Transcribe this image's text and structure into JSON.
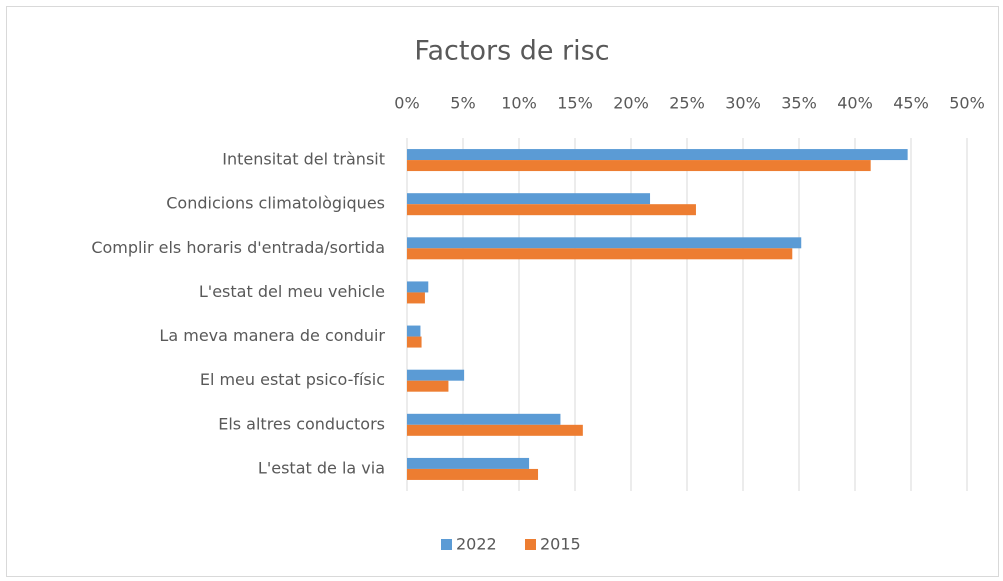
{
  "chart_data": {
    "type": "hbar",
    "title": "Factors de risc",
    "categories": [
      "Intensitat del trànsit",
      "Condicions climatològiques",
      "Complir els horaris d'entrada/sortida",
      "L'estat del meu vehicle",
      "La meva manera de conduir",
      "El meu estat psico-físic",
      "Els altres conductors",
      "L'estat de la via"
    ],
    "series": [
      {
        "name": "2022",
        "color": "#5b9bd5",
        "values": [
          44.7,
          21.7,
          35.2,
          1.9,
          1.2,
          5.1,
          13.7,
          10.9
        ]
      },
      {
        "name": "2015",
        "color": "#ed7d31",
        "values": [
          41.4,
          25.8,
          34.4,
          1.6,
          1.3,
          3.7,
          15.7,
          11.7
        ]
      }
    ],
    "xlim": [
      0,
      50
    ],
    "xticks": [
      {
        "value": 0,
        "label": "0%"
      },
      {
        "value": 5,
        "label": "5%"
      },
      {
        "value": 10,
        "label": "10%"
      },
      {
        "value": 15,
        "label": "15%"
      },
      {
        "value": 20,
        "label": "20%"
      },
      {
        "value": 25,
        "label": "25%"
      },
      {
        "value": 30,
        "label": "30%"
      },
      {
        "value": 35,
        "label": "35%"
      },
      {
        "value": 40,
        "label": "40%"
      },
      {
        "value": 45,
        "label": "45%"
      },
      {
        "value": 50,
        "label": "50%"
      }
    ],
    "grid": true,
    "legend": "bottom"
  }
}
